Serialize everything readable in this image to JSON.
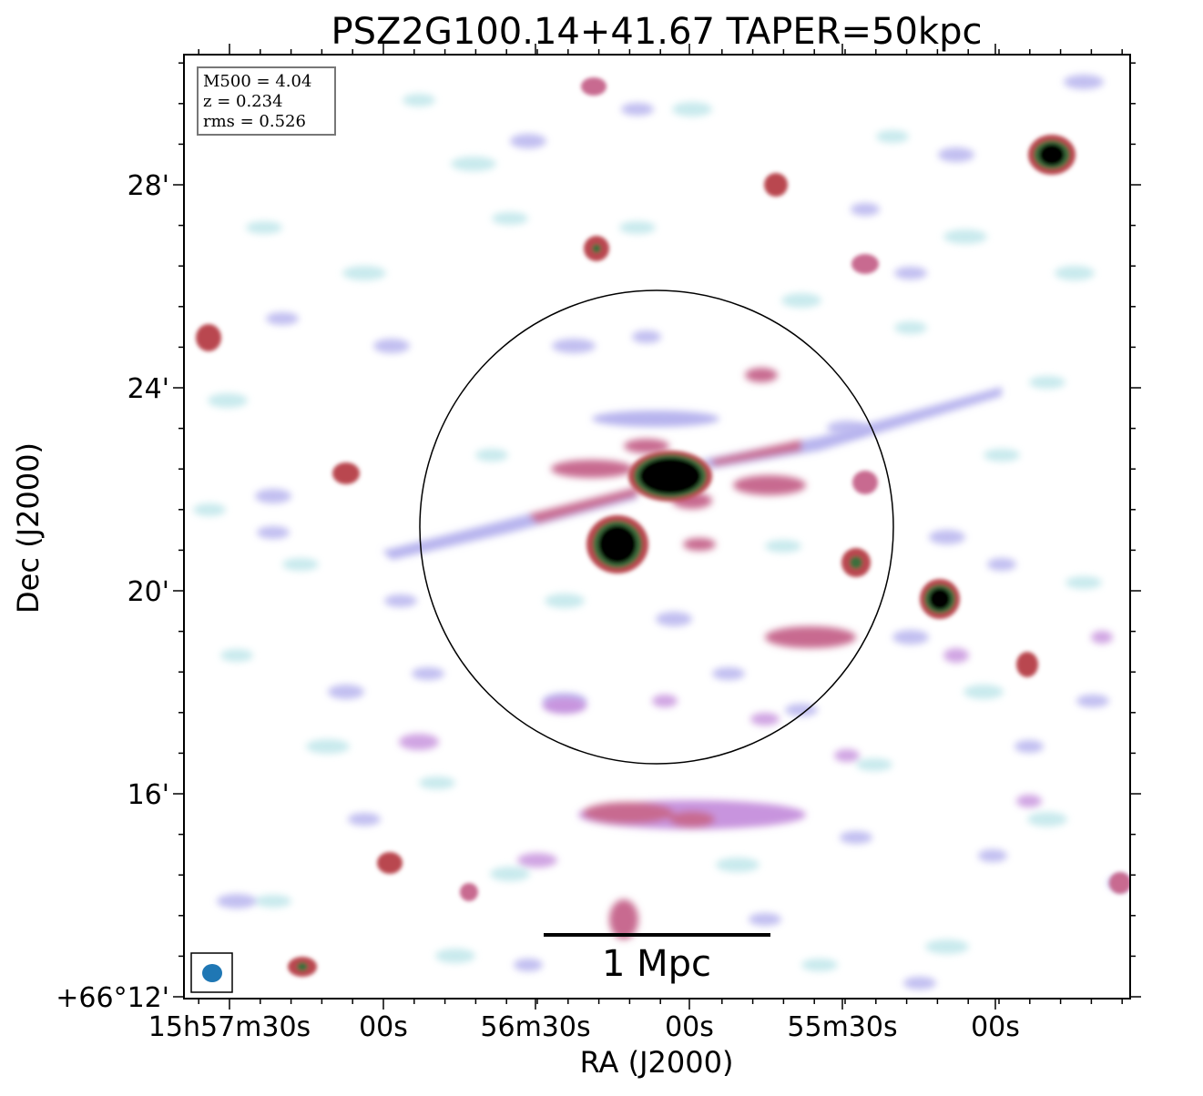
{
  "title": "PSZ2G100.14+41.67 TAPER=50kpc",
  "info_box": {
    "m500": "M500 = 4.04",
    "z": "z = 0.234",
    "rms": "rms = 0.526"
  },
  "axes": {
    "xlabel": "RA (J2000)",
    "ylabel": "Dec (J2000)",
    "x_ticks": [
      "15h57m30s",
      "00s",
      "56m30s",
      "00s",
      "55m30s",
      "00s"
    ],
    "y_ticks": [
      "28'",
      "24'",
      "20'",
      "16'",
      "+66°12'"
    ]
  },
  "scalebar": {
    "label": "1 Mpc"
  },
  "colors": {
    "faint": "#bfe6ea",
    "mid": "#b7b4ee",
    "lavender": "#c894de",
    "pink": "#c86a90",
    "red": "#b9474f",
    "green": "#3c6e3c",
    "black": "#000000",
    "beam": "#1f77b4"
  },
  "beam_icon": "beam-ellipse"
}
